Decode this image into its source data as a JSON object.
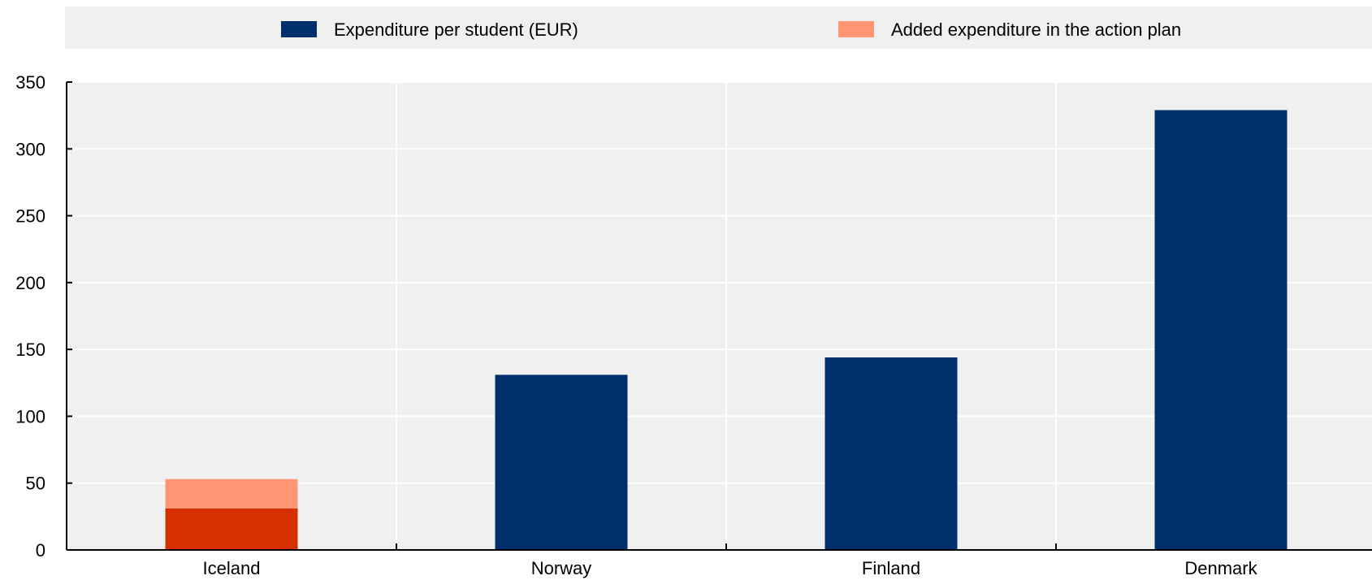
{
  "chart_data": {
    "type": "bar",
    "title": "",
    "xlabel": "",
    "ylabel": "",
    "categories": [
      "Iceland",
      "Norway",
      "Finland",
      "Denmark"
    ],
    "series": [
      {
        "name": "Expenditure per student (EUR)",
        "color": "#002f6c",
        "values": [
          31,
          131,
          144,
          329
        ]
      },
      {
        "name": "Added expenditure in the action plan",
        "color": "#ff9573",
        "values": [
          22,
          0,
          0,
          0
        ]
      }
    ],
    "highlight": {
      "category": "Iceland",
      "base_color": "#d62f00",
      "added_color": "#ff9573"
    },
    "stacked": true,
    "ylim": [
      0,
      350
    ],
    "yticks": [
      "0",
      "50",
      "100",
      "150",
      "200",
      "250",
      "300",
      "350"
    ],
    "grid": true,
    "legend_position": "top",
    "colors": {
      "plot_background": "#f0f0f0",
      "legend_background": "#f0f0f0",
      "gridline": "#ffffff",
      "axis": "#000000"
    }
  }
}
